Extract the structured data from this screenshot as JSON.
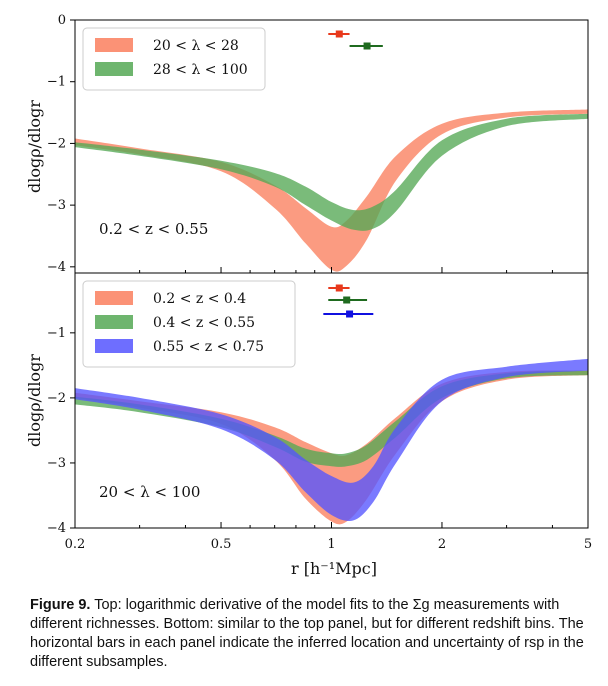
{
  "chart_data": [
    {
      "type": "area",
      "panel": "top",
      "xscale": "log",
      "xlim": [
        0.2,
        5
      ],
      "ylim": [
        -4.1,
        0
      ],
      "ylabel": "dlogρ/dlogr",
      "yticks": [
        "0",
        "−1",
        "−2",
        "−3",
        "−4"
      ],
      "annotation": "0.2 < z < 0.55",
      "legend": "top-left",
      "series": [
        {
          "name": "20 < λ < 28",
          "color": "#fa7f5e",
          "x": [
            0.2,
            0.3,
            0.5,
            0.7,
            0.85,
            1.0,
            1.1,
            1.25,
            1.5,
            2.0,
            3.0,
            5.0
          ],
          "lower": [
            -2.03,
            -2.18,
            -2.45,
            -3.05,
            -3.62,
            -4.05,
            -3.98,
            -3.55,
            -2.6,
            -1.85,
            -1.58,
            -1.52
          ],
          "upper": [
            -1.92,
            -2.08,
            -2.3,
            -2.68,
            -3.05,
            -3.35,
            -3.25,
            -2.85,
            -2.2,
            -1.68,
            -1.5,
            -1.45
          ],
          "r_sp": 1.05,
          "r_sp_err": [
            0.98,
            1.12
          ]
        },
        {
          "name": "28 < λ < 100",
          "color": "#55a855",
          "x": [
            0.2,
            0.3,
            0.5,
            0.7,
            0.85,
            1.0,
            1.15,
            1.3,
            1.5,
            2.0,
            3.0,
            5.0
          ],
          "lower": [
            -2.06,
            -2.2,
            -2.42,
            -2.7,
            -3.0,
            -3.25,
            -3.4,
            -3.38,
            -3.1,
            -2.2,
            -1.72,
            -1.6
          ],
          "upper": [
            -1.98,
            -2.1,
            -2.28,
            -2.48,
            -2.7,
            -2.95,
            -3.08,
            -3.02,
            -2.75,
            -1.95,
            -1.6,
            -1.52
          ],
          "r_sp": 1.25,
          "r_sp_err": [
            1.12,
            1.38
          ]
        }
      ]
    },
    {
      "type": "area",
      "panel": "bottom",
      "xscale": "log",
      "xlim": [
        0.2,
        5
      ],
      "xticks": [
        "0.2",
        "0.5",
        "1",
        "2",
        "5"
      ],
      "ylim": [
        -4,
        -0.08
      ],
      "ylabel": "dlogρ/dlogr",
      "yticks": [
        "−1",
        "−2",
        "−3",
        "−4"
      ],
      "xlabel": "r [h⁻¹Mpc]",
      "annotation": "20 < λ < 100",
      "legend": "top-left",
      "series": [
        {
          "name": "0.2 < z < 0.4",
          "color": "#fa7f5e",
          "x": [
            0.2,
            0.3,
            0.5,
            0.7,
            0.85,
            1.0,
            1.1,
            1.25,
            1.5,
            2.0,
            3.0,
            5.0
          ],
          "lower": [
            -2.0,
            -2.15,
            -2.4,
            -2.95,
            -3.55,
            -3.9,
            -3.9,
            -3.55,
            -2.85,
            -2.05,
            -1.72,
            -1.65
          ],
          "upper": [
            -1.92,
            -2.05,
            -2.22,
            -2.45,
            -2.68,
            -2.85,
            -2.88,
            -2.7,
            -2.3,
            -1.78,
            -1.6,
            -1.58
          ],
          "r_sp": 1.05,
          "r_sp_err": [
            0.98,
            1.12
          ]
        },
        {
          "name": "0.4 < z < 0.55",
          "color": "#55a855",
          "x": [
            0.2,
            0.3,
            0.5,
            0.7,
            0.85,
            1.0,
            1.1,
            1.25,
            1.5,
            2.0,
            3.0,
            5.0
          ],
          "lower": [
            -2.1,
            -2.22,
            -2.45,
            -2.75,
            -2.98,
            -3.05,
            -3.05,
            -2.95,
            -2.6,
            -2.0,
            -1.7,
            -1.65
          ],
          "upper": [
            -1.98,
            -2.1,
            -2.32,
            -2.58,
            -2.78,
            -2.85,
            -2.85,
            -2.72,
            -2.35,
            -1.82,
            -1.62,
            -1.58
          ],
          "r_sp": 1.1,
          "r_sp_err": [
            0.98,
            1.25
          ]
        },
        {
          "name": "0.55 < z < 0.75",
          "color": "#5555ff",
          "x": [
            0.2,
            0.3,
            0.5,
            0.7,
            0.85,
            1.0,
            1.15,
            1.3,
            1.5,
            2.0,
            3.0,
            5.0
          ],
          "lower": [
            -2.02,
            -2.18,
            -2.48,
            -2.95,
            -3.45,
            -3.8,
            -3.88,
            -3.6,
            -3.0,
            -2.05,
            -1.68,
            -1.58
          ],
          "upper": [
            -1.85,
            -2.0,
            -2.25,
            -2.6,
            -2.95,
            -3.2,
            -3.3,
            -3.05,
            -2.45,
            -1.72,
            -1.52,
            -1.4
          ],
          "r_sp": 1.12,
          "r_sp_err": [
            0.95,
            1.3
          ]
        }
      ]
    }
  ],
  "caption": {
    "label": "Figure 9.",
    "text": "Top: logarithmic derivative of the model fits to the Σg measurements with different richnesses. Bottom: similar to the top panel, but for different redshift bins. The horizontal bars in each panel indicate the inferred location and uncertainty of rsp in the different subsamples."
  }
}
